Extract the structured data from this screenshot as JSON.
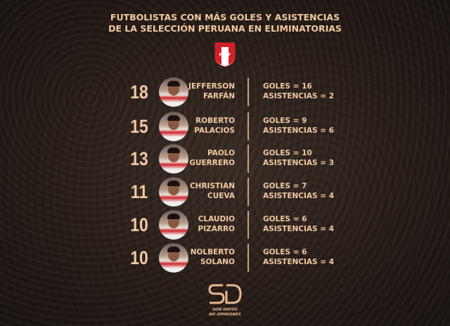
{
  "title": {
    "line1": "FUTBOLISTAS CON MÁS GOLES Y ASISTENCIAS",
    "line2": "DE LA SELECCIÓN PERUANA EN ELIMINATORIAS"
  },
  "crest": {
    "text": "FPF",
    "colors": {
      "red": "#d0202a",
      "white": "#ffffff"
    }
  },
  "players": [
    {
      "total": "18",
      "first": "JEFFERSON",
      "last": "FARFÁN",
      "goles": "GOLES = 16",
      "asistencias": "ASISTENCIAS = 2"
    },
    {
      "total": "15",
      "first": "ROBERTO",
      "last": "PALACIOS",
      "goles": "GOLES = 9",
      "asistencias": "ASISTENCIAS = 6"
    },
    {
      "total": "13",
      "first": "PAOLO",
      "last": "GUERRERO",
      "goles": "GOLES = 10",
      "asistencias": "ASISTENCIAS = 3"
    },
    {
      "total": "11",
      "first": "CHRISTIAN",
      "last": "CUEVA",
      "goles": "GOLES = 7",
      "asistencias": "ASISTENCIAS = 4"
    },
    {
      "total": "10",
      "first": "CLAUDIO",
      "last": "PIZARRO",
      "goles": "GOLES = 6",
      "asistencias": "ASISTENCIAS = 4"
    },
    {
      "total": "10",
      "first": "NOLBERTO",
      "last": "SOLANO",
      "goles": "GOLES = 6",
      "asistencias": "ASISTENCIAS = 4"
    }
  ],
  "brand": {
    "logo": "SD",
    "line1": "SON DATOS",
    "line2": "NO OPINIONES"
  },
  "colors": {
    "text": "#f1c9a1",
    "background": "#261c17"
  }
}
